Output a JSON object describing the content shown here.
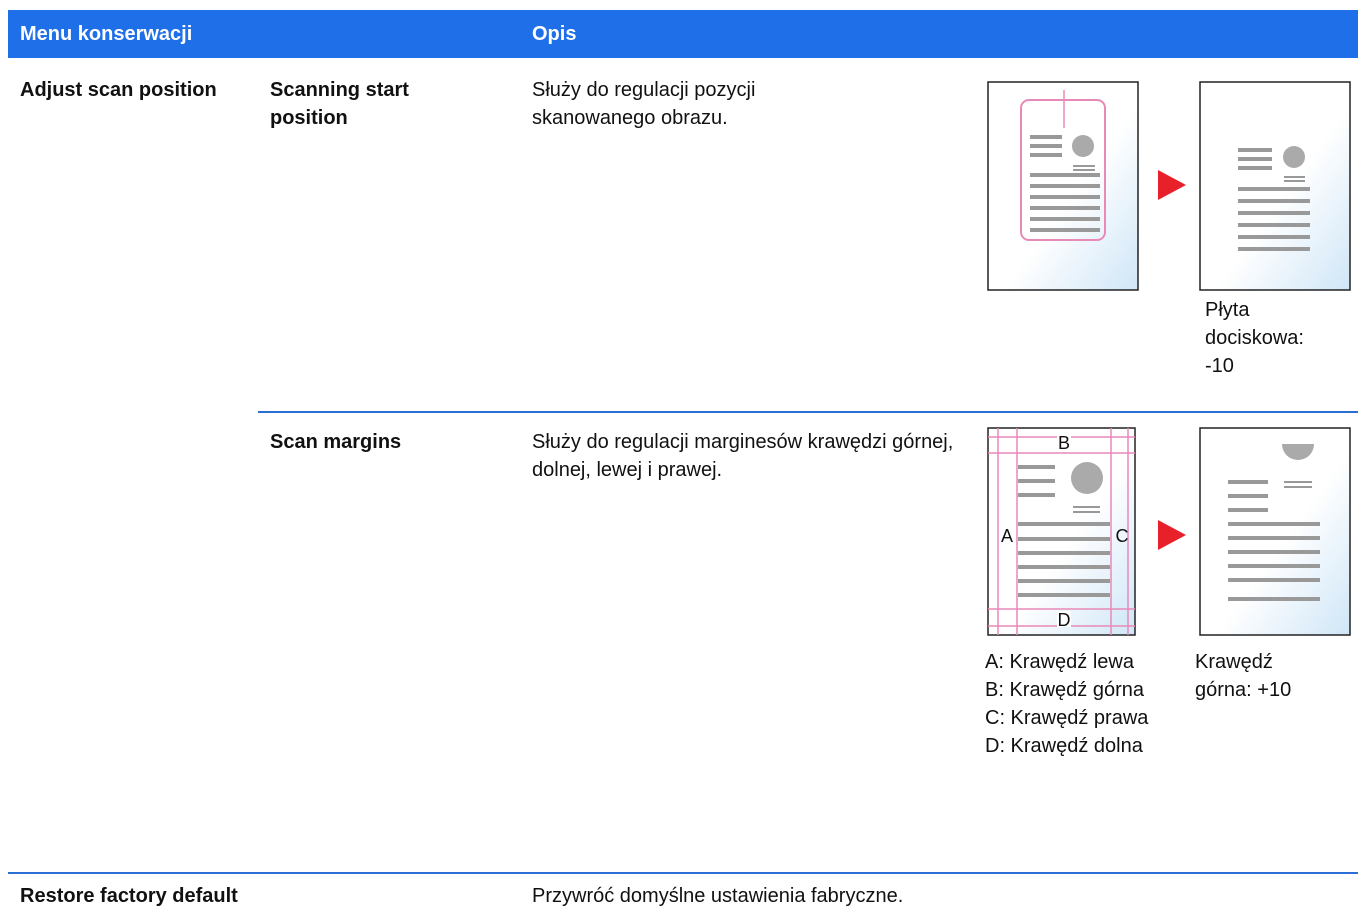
{
  "table": {
    "header": [
      "Menu konserwacji",
      "Opis"
    ],
    "rows": [
      {
        "menu": "Adjust scan position",
        "items": [
          {
            "name": "Scanning start position",
            "description": "Służy do regulacji pozycji skanowanego obrazu.",
            "caption": "Płyta dociskowa: -10"
          },
          {
            "name": "Scan margins",
            "description": "Służy do regulacji marginesów krawędzi górnej, dolnej, lewej i prawej.",
            "figure_labels": [
              "A",
              "B",
              "C",
              "D"
            ],
            "legend": [
              "A: Krawędź lewa",
              "B: Krawędź górna",
              "C: Krawędź prawa",
              "D: Krawędź dolna"
            ],
            "caption": "Krawędź górna: +10"
          }
        ]
      },
      {
        "menu": "Restore factory default",
        "description": "Przywróć domyślne ustawienia fabryczne."
      }
    ]
  }
}
